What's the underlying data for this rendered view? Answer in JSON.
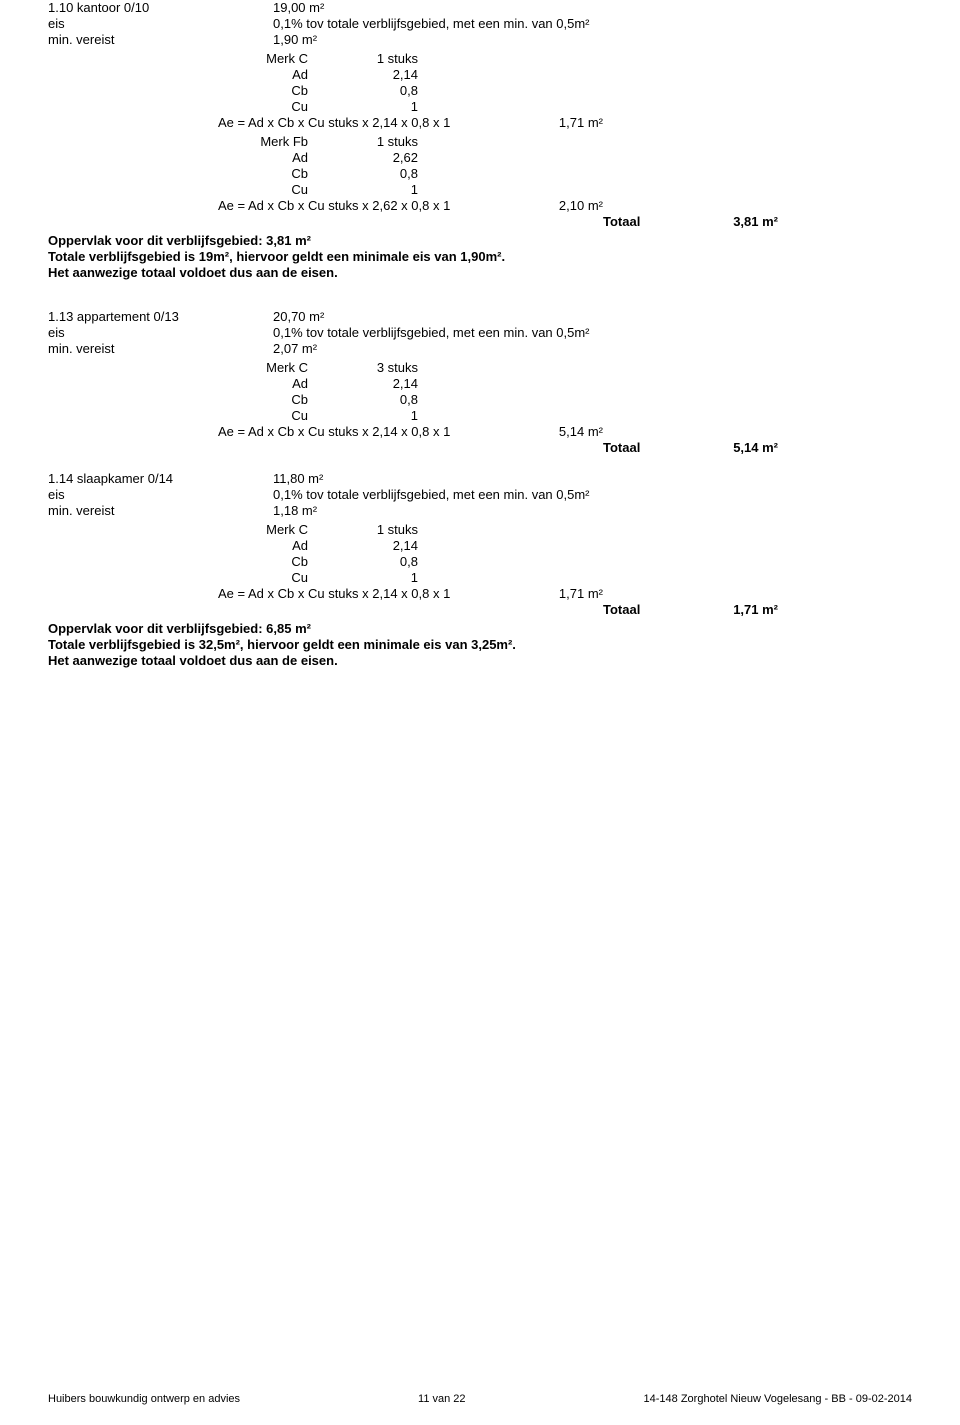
{
  "rooms": [
    {
      "title": "1.10 kantoor 0/10",
      "area": "19,00 m²",
      "eis_label": "eis",
      "eis_value": "0,1% tov totale verblijfsgebied, met een min. van 0,5m²",
      "min_label": "min. vereist",
      "min_value": "1,90 m²",
      "blocks": [
        {
          "merk_label": "Merk C",
          "merk_val": "1 stuks",
          "ad_label": "Ad",
          "ad_val": "2,14",
          "cb_label": "Cb",
          "cb_val": "0,8",
          "cu_label": "Cu",
          "cu_val": "1",
          "formula": "Ae = Ad x Cb x Cu stuks x 2,14 x 0,8 x 1",
          "result": "1,71 m²"
        },
        {
          "merk_label": "Merk Fb",
          "merk_val": "1 stuks",
          "ad_label": "Ad",
          "ad_val": "2,62",
          "cb_label": "Cb",
          "cb_val": "0,8",
          "cu_label": "Cu",
          "cu_val": "1",
          "formula": "Ae = Ad x Cb x Cu stuks x 2,62 x 0,8 x 1",
          "result": "2,10 m²"
        }
      ],
      "totaal_label": "Totaal",
      "totaal_val": "3,81 m²",
      "summary1": "Oppervlak voor dit verblijfsgebied:    3,81 m²",
      "summary2": "Totale verblijfsgebied is 19m², hiervoor geldt een minimale eis van 1,90m².",
      "summary3": "Het aanwezige totaal voldoet dus aan de eisen."
    },
    {
      "title": "1.13 appartement 0/13",
      "area": "20,70 m²",
      "eis_label": "eis",
      "eis_value": "0,1% tov totale verblijfsgebied, met een min. van 0,5m²",
      "min_label": "min. vereist",
      "min_value": "2,07 m²",
      "blocks": [
        {
          "merk_label": "Merk C",
          "merk_val": "3 stuks",
          "ad_label": "Ad",
          "ad_val": "2,14",
          "cb_label": "Cb",
          "cb_val": "0,8",
          "cu_label": "Cu",
          "cu_val": "1",
          "formula": "Ae = Ad x Cb x Cu stuks x 2,14 x 0,8 x 1",
          "result": "5,14 m²"
        }
      ],
      "totaal_label": "Totaal",
      "totaal_val": "5,14 m²"
    },
    {
      "title": "1.14 slaapkamer 0/14",
      "area": "11,80 m²",
      "eis_label": "eis",
      "eis_value": "0,1% tov totale verblijfsgebied, met een min. van 0,5m²",
      "min_label": "min. vereist",
      "min_value": "1,18 m²",
      "blocks": [
        {
          "merk_label": "Merk C",
          "merk_val": "1 stuks",
          "ad_label": "Ad",
          "ad_val": "2,14",
          "cb_label": "Cb",
          "cb_val": "0,8",
          "cu_label": "Cu",
          "cu_val": "1",
          "formula": "Ae = Ad x Cb x Cu stuks x 2,14 x 0,8 x 1",
          "result": "1,71 m²"
        }
      ],
      "totaal_label": "Totaal",
      "totaal_val": "1,71 m²",
      "summary1": "Oppervlak voor dit verblijfsgebied:    6,85 m²",
      "summary2": "Totale verblijfsgebied is 32,5m², hiervoor geldt een minimale eis van 3,25m².",
      "summary3": "Het aanwezige totaal voldoet dus aan de eisen."
    }
  ],
  "footer": {
    "left": "Huibers bouwkundig ontwerp en advies",
    "center": "11 van 22",
    "right": "14-148 Zorghotel Nieuw Vogelesang - BB - 09-02-2014"
  }
}
